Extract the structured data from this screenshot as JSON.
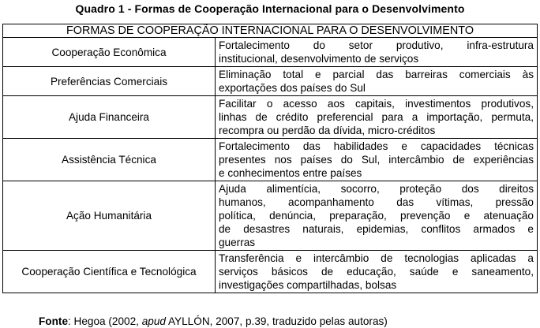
{
  "title": "Quadro 1 - Formas de Cooperação Internacional para o Desenvolvimento",
  "table": {
    "header": "FORMAS DE COOPERAÇÃO INTERNACIONAL PARA O DESENVOLVIMENTO",
    "rows": [
      {
        "category": "Cooperação Econômica",
        "lines": [
          "Fortalecimento do setor produtivo, infra-estrutura",
          "institucional, desenvolvimento de serviços"
        ]
      },
      {
        "category": "Preferências Comerciais",
        "lines": [
          "Eliminação total e parcial das barreiras comerciais às",
          "exportações dos países do Sul"
        ]
      },
      {
        "category": "Ajuda Financeira",
        "lines": [
          "Facilitar o acesso aos capitais, investimentos produtivos,",
          "linhas de crédito preferencial para a importação, permuta,",
          "recompra ou perdão da dívida, micro-créditos"
        ]
      },
      {
        "category": "Assistência Técnica",
        "lines": [
          "Fortalecimento das habilidades e capacidades técnicas",
          "presentes nos países do Sul, intercâmbio de experiências",
          "e conhecimentos entre países"
        ]
      },
      {
        "category": "Ação Humanitária",
        "lines": [
          "Ajuda alimentícia, socorro, proteção dos direitos",
          "humanos, acompanhamento das vítimas, pressão",
          "política, denúncia, preparação, prevenção e atenuação",
          "de desastres naturais, epidemias, conflitos armados e",
          "guerras"
        ]
      },
      {
        "category": "Cooperação Científica e Tecnológica",
        "lines": [
          "Transferência e intercâmbio de tecnologias aplicadas a",
          "serviços básicos de educação, saúde e saneamento,",
          "investigações compartilhadas, bolsas"
        ]
      }
    ]
  },
  "source": {
    "label": "Fonte",
    "text1": ": Hegoa (2002, ",
    "italic": "apud",
    "text2": " AYLLÓN, 2007, p.39, traduzido pelas autoras)"
  }
}
